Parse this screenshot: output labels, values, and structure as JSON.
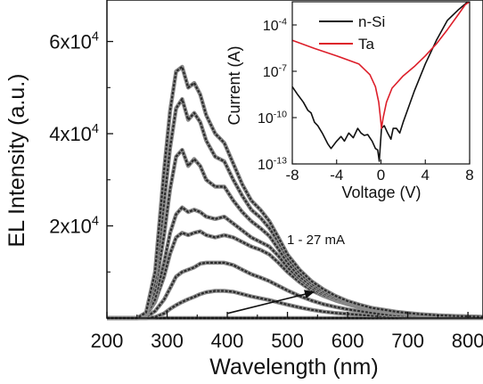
{
  "chart_data": [
    {
      "type": "line",
      "xlabel": "Wavelength (nm)",
      "ylabel": "EL Intensity (a.u.)",
      "xlim": [
        200,
        825
      ],
      "ylim": [
        0,
        69000
      ],
      "xticks": [
        {
          "value": 200,
          "label": "200"
        },
        {
          "value": 300,
          "label": "300"
        },
        {
          "value": 400,
          "label": "400"
        },
        {
          "value": 500,
          "label": "500"
        },
        {
          "value": 600,
          "label": "600"
        },
        {
          "value": 700,
          "label": "700"
        },
        {
          "value": 800,
          "label": "800"
        }
      ],
      "yticks": [
        {
          "value": 20000,
          "mantissa": "2x10",
          "exponent": "4"
        },
        {
          "value": 40000,
          "mantissa": "4x10",
          "exponent": "4"
        },
        {
          "value": 60000,
          "mantissa": "6x10",
          "exponent": "4"
        }
      ],
      "annotation": {
        "text": "1 - 27 mA",
        "arrow_from": [
          400,
          1000
        ],
        "arrow_to": [
          545,
          5700
        ]
      },
      "x": [
        200,
        250,
        265,
        280,
        295,
        305,
        315,
        325,
        335,
        345,
        355,
        365,
        380,
        395,
        410,
        425,
        440,
        455,
        470,
        485,
        500,
        520,
        540,
        560,
        580,
        600,
        620,
        640,
        660,
        680,
        700,
        720,
        750,
        780,
        810,
        825
      ],
      "series": [
        {
          "values": [
            0,
            0,
            0,
            0,
            0,
            0,
            0,
            0,
            0,
            0,
            0,
            0,
            0,
            0,
            0,
            0,
            0,
            0,
            0,
            0,
            0,
            0,
            0,
            0,
            0,
            0,
            0,
            0,
            0,
            0,
            0,
            0,
            0,
            0,
            0,
            0
          ]
        },
        {
          "values": [
            0,
            0,
            0,
            200,
            1000,
            2000,
            2800,
            3500,
            4100,
            4600,
            5200,
            5600,
            5900,
            5900,
            5700,
            5200,
            4700,
            4300,
            3900,
            3400,
            2900,
            2300,
            1800,
            1400,
            1100,
            900,
            700,
            500,
            400,
            300,
            200,
            150,
            100,
            80,
            50,
            40
          ]
        },
        {
          "values": [
            0,
            0,
            200,
            1500,
            4000,
            6500,
            9000,
            10000,
            10500,
            11000,
            11800,
            12000,
            12000,
            12000,
            11500,
            10500,
            9500,
            8800,
            8000,
            7000,
            6000,
            4800,
            3800,
            3000,
            2400,
            1900,
            1500,
            1100,
            800,
            600,
            500,
            400,
            300,
            200,
            150,
            100
          ]
        },
        {
          "values": [
            0,
            0,
            500,
            3500,
            9000,
            14000,
            17500,
            18500,
            18000,
            18500,
            18800,
            18000,
            17500,
            18000,
            17500,
            16500,
            15500,
            14800,
            13800,
            12000,
            10000,
            7800,
            6000,
            4800,
            3800,
            3000,
            2300,
            1800,
            1400,
            1000,
            800,
            600,
            400,
            300,
            200,
            150
          ]
        },
        {
          "values": [
            0,
            0,
            500,
            4000,
            12000,
            18500,
            22500,
            24000,
            23000,
            23500,
            23000,
            22000,
            21500,
            22000,
            20500,
            19000,
            17500,
            16500,
            15500,
            13500,
            11000,
            8500,
            6500,
            5000,
            4000,
            3100,
            2400,
            1900,
            1500,
            1100,
            900,
            700,
            500,
            350,
            250,
            200
          ]
        },
        {
          "values": [
            0,
            0,
            800,
            6000,
            18000,
            28000,
            35000,
            36500,
            33000,
            34500,
            33000,
            30000,
            28500,
            28500,
            25500,
            23000,
            21000,
            19500,
            17800,
            15000,
            12000,
            9000,
            7000,
            5400,
            4200,
            3300,
            2600,
            2000,
            1600,
            1200,
            950,
            750,
            500,
            380,
            280,
            220
          ]
        },
        {
          "values": [
            0,
            0,
            1000,
            8000,
            25000,
            37000,
            45500,
            47500,
            43000,
            44500,
            42500,
            38500,
            35000,
            34000,
            30000,
            26500,
            23500,
            21800,
            19500,
            16500,
            13000,
            9800,
            7500,
            5800,
            4500,
            3500,
            2700,
            2100,
            1700,
            1300,
            1000,
            800,
            550,
            400,
            300,
            240
          ]
        },
        {
          "values": [
            0,
            0,
            1200,
            10000,
            32000,
            45000,
            53500,
            54500,
            50000,
            51000,
            48500,
            44000,
            40000,
            38000,
            33500,
            29000,
            25500,
            23500,
            21000,
            17500,
            13800,
            10500,
            8000,
            6200,
            4800,
            3700,
            2900,
            2200,
            1800,
            1400,
            1100,
            850,
            600,
            450,
            330,
            260
          ]
        }
      ]
    },
    {
      "type": "line",
      "xlabel": "Voltage (V)",
      "ylabel": "Current (A)",
      "xlim": [
        -8,
        8
      ],
      "ylim_log10": [
        -13,
        -2.5
      ],
      "yscale": "log",
      "legend_position": "top-right",
      "xticks": [
        {
          "value": -8,
          "label": "-8"
        },
        {
          "value": -4,
          "label": "-4"
        },
        {
          "value": 0,
          "label": "0"
        },
        {
          "value": 4,
          "label": "4"
        },
        {
          "value": 8,
          "label": "8"
        }
      ],
      "yticks": [
        {
          "value": 1e-13,
          "base": "10",
          "exponent": "-13"
        },
        {
          "value": 1e-10,
          "base": "10",
          "exponent": "-10"
        },
        {
          "value": 1e-07,
          "base": "10",
          "exponent": "-7"
        },
        {
          "value": 0.0001,
          "base": "10",
          "exponent": "-4"
        }
      ],
      "series": [
        {
          "name": "n-Si",
          "color": "#111111",
          "points": [
            [
              -8,
              1e-08
            ],
            [
              -7.5,
              3e-09
            ],
            [
              -7,
              1e-09
            ],
            [
              -6.6,
              3e-10
            ],
            [
              -6.3,
              2e-10
            ],
            [
              -6,
              5e-11
            ],
            [
              -5.7,
              3e-11
            ],
            [
              -5.3,
              1e-11
            ],
            [
              -4.8,
              2e-12
            ],
            [
              -4.5,
              1e-12
            ],
            [
              -4,
              3e-12
            ],
            [
              -3.6,
              6e-12
            ],
            [
              -3.3,
              3e-12
            ],
            [
              -2.9,
              1e-11
            ],
            [
              -2.5,
              5e-12
            ],
            [
              -2.1,
              2e-11
            ],
            [
              -1.8,
              1e-11
            ],
            [
              -1.5,
              7e-12
            ],
            [
              -1.2,
              8e-12
            ],
            [
              -0.8,
              3e-12
            ],
            [
              -0.5,
              1e-12
            ],
            [
              -0.3,
              8e-13
            ],
            [
              -0.15,
              1.5e-13
            ],
            [
              -0.05,
              2e-12
            ],
            [
              0.05,
              2e-11
            ],
            [
              0.3,
              3e-11
            ],
            [
              0.6,
              1e-11
            ],
            [
              0.9,
              4e-12
            ],
            [
              1.1,
              2e-11
            ],
            [
              1.4,
              2e-11
            ],
            [
              1.7,
              1e-11
            ],
            [
              2,
              5e-11
            ],
            [
              3,
              5e-09
            ],
            [
              4,
              3e-07
            ],
            [
              5,
              1e-05
            ],
            [
              6,
              0.0002
            ],
            [
              7,
              0.001
            ],
            [
              7.8,
              0.003
            ]
          ]
        },
        {
          "name": "Ta",
          "color": "#dd1f2a",
          "points": [
            [
              -8,
              1e-05
            ],
            [
              -6,
              3e-06
            ],
            [
              -4,
              1e-06
            ],
            [
              -2,
              3e-07
            ],
            [
              -1,
              6e-08
            ],
            [
              -0.5,
              1e-08
            ],
            [
              -0.2,
              1e-09
            ],
            [
              -0.05,
              1e-10
            ],
            [
              0.05,
              2e-11
            ],
            [
              0.2,
              1e-10
            ],
            [
              0.5,
              1e-09
            ],
            [
              1,
              8e-09
            ],
            [
              2,
              5e-08
            ],
            [
              3,
              2e-07
            ],
            [
              4,
              1e-06
            ],
            [
              5,
              6e-06
            ],
            [
              6,
              5e-05
            ],
            [
              7,
              0.0005
            ],
            [
              7.6,
              0.002
            ],
            [
              8,
              0.0035
            ]
          ]
        }
      ]
    }
  ]
}
